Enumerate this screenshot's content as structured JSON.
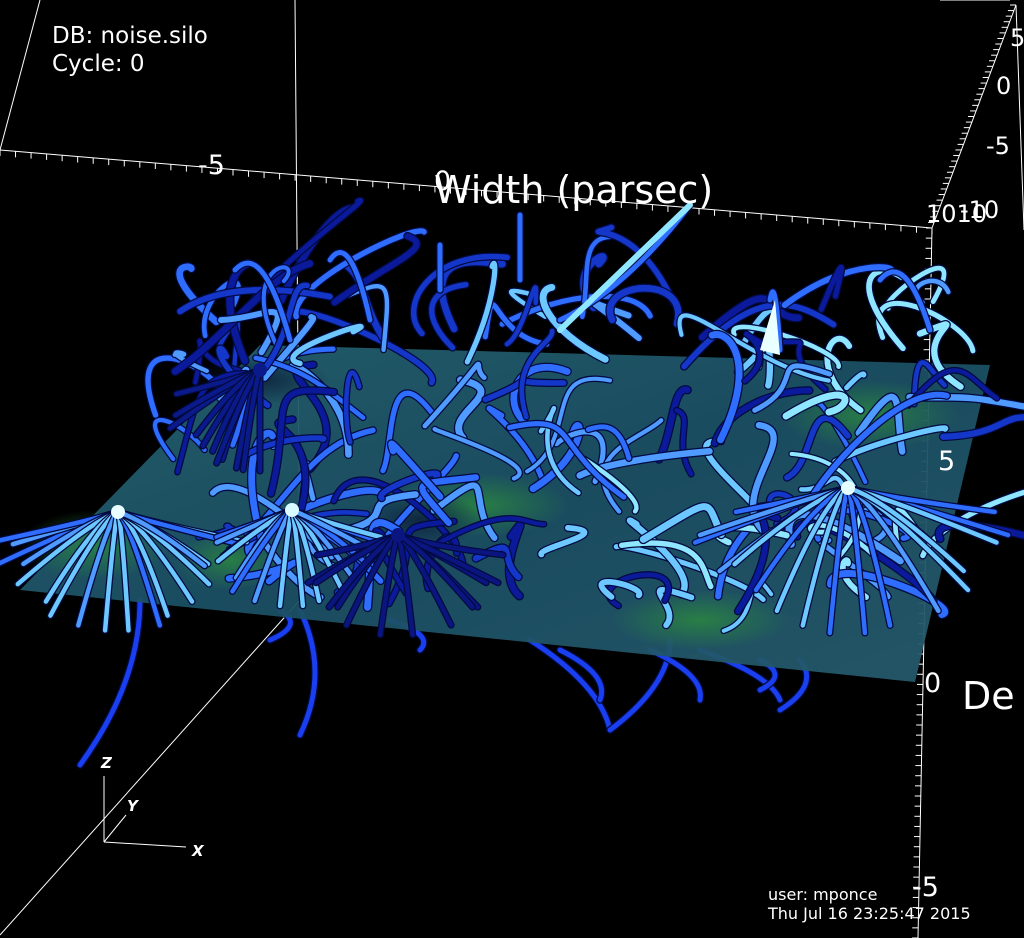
{
  "hud": {
    "database": "DB: noise.silo",
    "cycle": "Cycle: 0",
    "user": "user: mponce",
    "timestamp": "Thu Jul 16 23:25:47 2015"
  },
  "axes": {
    "x_title": "Width (parsec)",
    "y_title_partial": "De",
    "top_ticks": [
      "-5",
      "0"
    ],
    "right_back_ticks": [
      "5",
      "0",
      "-5",
      "-10"
    ],
    "right_back_overlap": "1010",
    "right_front_ticks": [
      "5",
      "0",
      "-5"
    ]
  },
  "triad": {
    "x": "X",
    "y": "Y",
    "z": "Z"
  },
  "colors": {
    "background": "#000000",
    "bounding_box": "#ffffff",
    "slice_plane": "#1d5a68",
    "slice_highlight": "#2a8a3a",
    "streamline_dark": "#0a1a9a",
    "streamline_mid": "#2f6dff",
    "streamline_light": "#8fe6ff"
  }
}
